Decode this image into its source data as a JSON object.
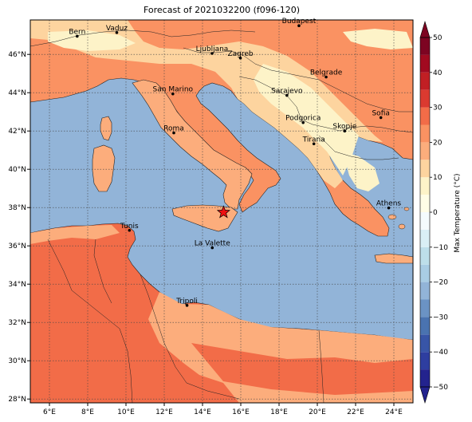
{
  "title": "Forecast of 2021032200 (f096-120)",
  "map": {
    "lon_range": [
      5,
      25
    ],
    "lat_range": [
      27.8,
      47.8
    ],
    "lon_ticks": [
      {
        "value": 6,
        "label": "6°E"
      },
      {
        "value": 8,
        "label": "8°E"
      },
      {
        "value": 10,
        "label": "10°E"
      },
      {
        "value": 12,
        "label": "12°E"
      },
      {
        "value": 14,
        "label": "14°E"
      },
      {
        "value": 16,
        "label": "16°E"
      },
      {
        "value": 18,
        "label": "18°E"
      },
      {
        "value": 20,
        "label": "20°E"
      },
      {
        "value": 22,
        "label": "22°E"
      },
      {
        "value": 24,
        "label": "24°E"
      }
    ],
    "lat_ticks": [
      {
        "value": 28,
        "label": "28°N"
      },
      {
        "value": 30,
        "label": "30°N"
      },
      {
        "value": 32,
        "label": "32°N"
      },
      {
        "value": 34,
        "label": "34°N"
      },
      {
        "value": 36,
        "label": "36°N"
      },
      {
        "value": 38,
        "label": "38°N"
      },
      {
        "value": 40,
        "label": "40°N"
      },
      {
        "value": 42,
        "label": "42°N"
      },
      {
        "value": 44,
        "label": "44°N"
      },
      {
        "value": 46,
        "label": "46°N"
      }
    ],
    "grid": true,
    "sea_color": "#92b4d8",
    "cities": [
      {
        "name": "Bern",
        "lon": 7.45,
        "lat": 46.95
      },
      {
        "name": "Vaduz",
        "lon": 9.52,
        "lat": 47.14
      },
      {
        "name": "Budapest",
        "lon": 19.04,
        "lat": 47.5
      },
      {
        "name": "Ljubljana",
        "lon": 14.5,
        "lat": 46.05
      },
      {
        "name": "Zagreb",
        "lon": 15.98,
        "lat": 45.81
      },
      {
        "name": "Belgrade",
        "lon": 20.46,
        "lat": 44.82
      },
      {
        "name": "San Marino",
        "lon": 12.45,
        "lat": 43.94
      },
      {
        "name": "Sarajevo",
        "lon": 18.41,
        "lat": 43.86
      },
      {
        "name": "Sofia",
        "lon": 23.32,
        "lat": 42.7
      },
      {
        "name": "Podgorica",
        "lon": 19.26,
        "lat": 42.44
      },
      {
        "name": "Skopje",
        "lon": 21.43,
        "lat": 42.0
      },
      {
        "name": "Roma",
        "lon": 12.5,
        "lat": 41.9
      },
      {
        "name": "Tirana",
        "lon": 19.82,
        "lat": 41.33
      },
      {
        "name": "Athens",
        "lon": 23.73,
        "lat": 37.98
      },
      {
        "name": "Tunis",
        "lon": 10.18,
        "lat": 36.81
      },
      {
        "name": "La Valette",
        "lon": 14.51,
        "lat": 35.9
      },
      {
        "name": "Tripoli",
        "lon": 13.19,
        "lat": 32.89
      }
    ],
    "marker": {
      "icon": "star-icon",
      "lon": 15.1,
      "lat": 37.75,
      "color": "#ee1111"
    }
  },
  "colorbar": {
    "label": "Max Temperature (°C)",
    "min": -50,
    "max": 50,
    "ticks": [
      {
        "value": 50,
        "label": "50"
      },
      {
        "value": 40,
        "label": "40"
      },
      {
        "value": 30,
        "label": "30"
      },
      {
        "value": 20,
        "label": "20"
      },
      {
        "value": 10,
        "label": "10"
      },
      {
        "value": 0,
        "label": "0"
      },
      {
        "value": -10,
        "label": "−10"
      },
      {
        "value": -20,
        "label": "−20"
      },
      {
        "value": -30,
        "label": "−30"
      },
      {
        "value": -40,
        "label": "−40"
      },
      {
        "value": -50,
        "label": "−50"
      }
    ],
    "bins": [
      {
        "from": -50,
        "to": -45,
        "color": "#23238e"
      },
      {
        "from": -45,
        "to": -40,
        "color": "#2e3ea0"
      },
      {
        "from": -40,
        "to": -35,
        "color": "#3855a7"
      },
      {
        "from": -35,
        "to": -30,
        "color": "#4a73b0"
      },
      {
        "from": -30,
        "to": -25,
        "color": "#6b93c4"
      },
      {
        "from": -25,
        "to": -20,
        "color": "#92b4d8"
      },
      {
        "from": -20,
        "to": -15,
        "color": "#a9cde4"
      },
      {
        "from": -15,
        "to": -10,
        "color": "#bddfea"
      },
      {
        "from": -10,
        "to": -5,
        "color": "#d9eff5"
      },
      {
        "from": -5,
        "to": 0,
        "color": "#f4fbfd"
      },
      {
        "from": 0,
        "to": 5,
        "color": "#fffde6"
      },
      {
        "from": 5,
        "to": 10,
        "color": "#fdf3c8"
      },
      {
        "from": 10,
        "to": 15,
        "color": "#fdd49f"
      },
      {
        "from": 15,
        "to": 20,
        "color": "#fcad7c"
      },
      {
        "from": 20,
        "to": 25,
        "color": "#fa9262"
      },
      {
        "from": 25,
        "to": 30,
        "color": "#f26c48"
      },
      {
        "from": 30,
        "to": 35,
        "color": "#db3a30"
      },
      {
        "from": 35,
        "to": 40,
        "color": "#c11f24"
      },
      {
        "from": 40,
        "to": 45,
        "color": "#a10a20"
      },
      {
        "from": 45,
        "to": 50,
        "color": "#7d0422"
      }
    ]
  }
}
